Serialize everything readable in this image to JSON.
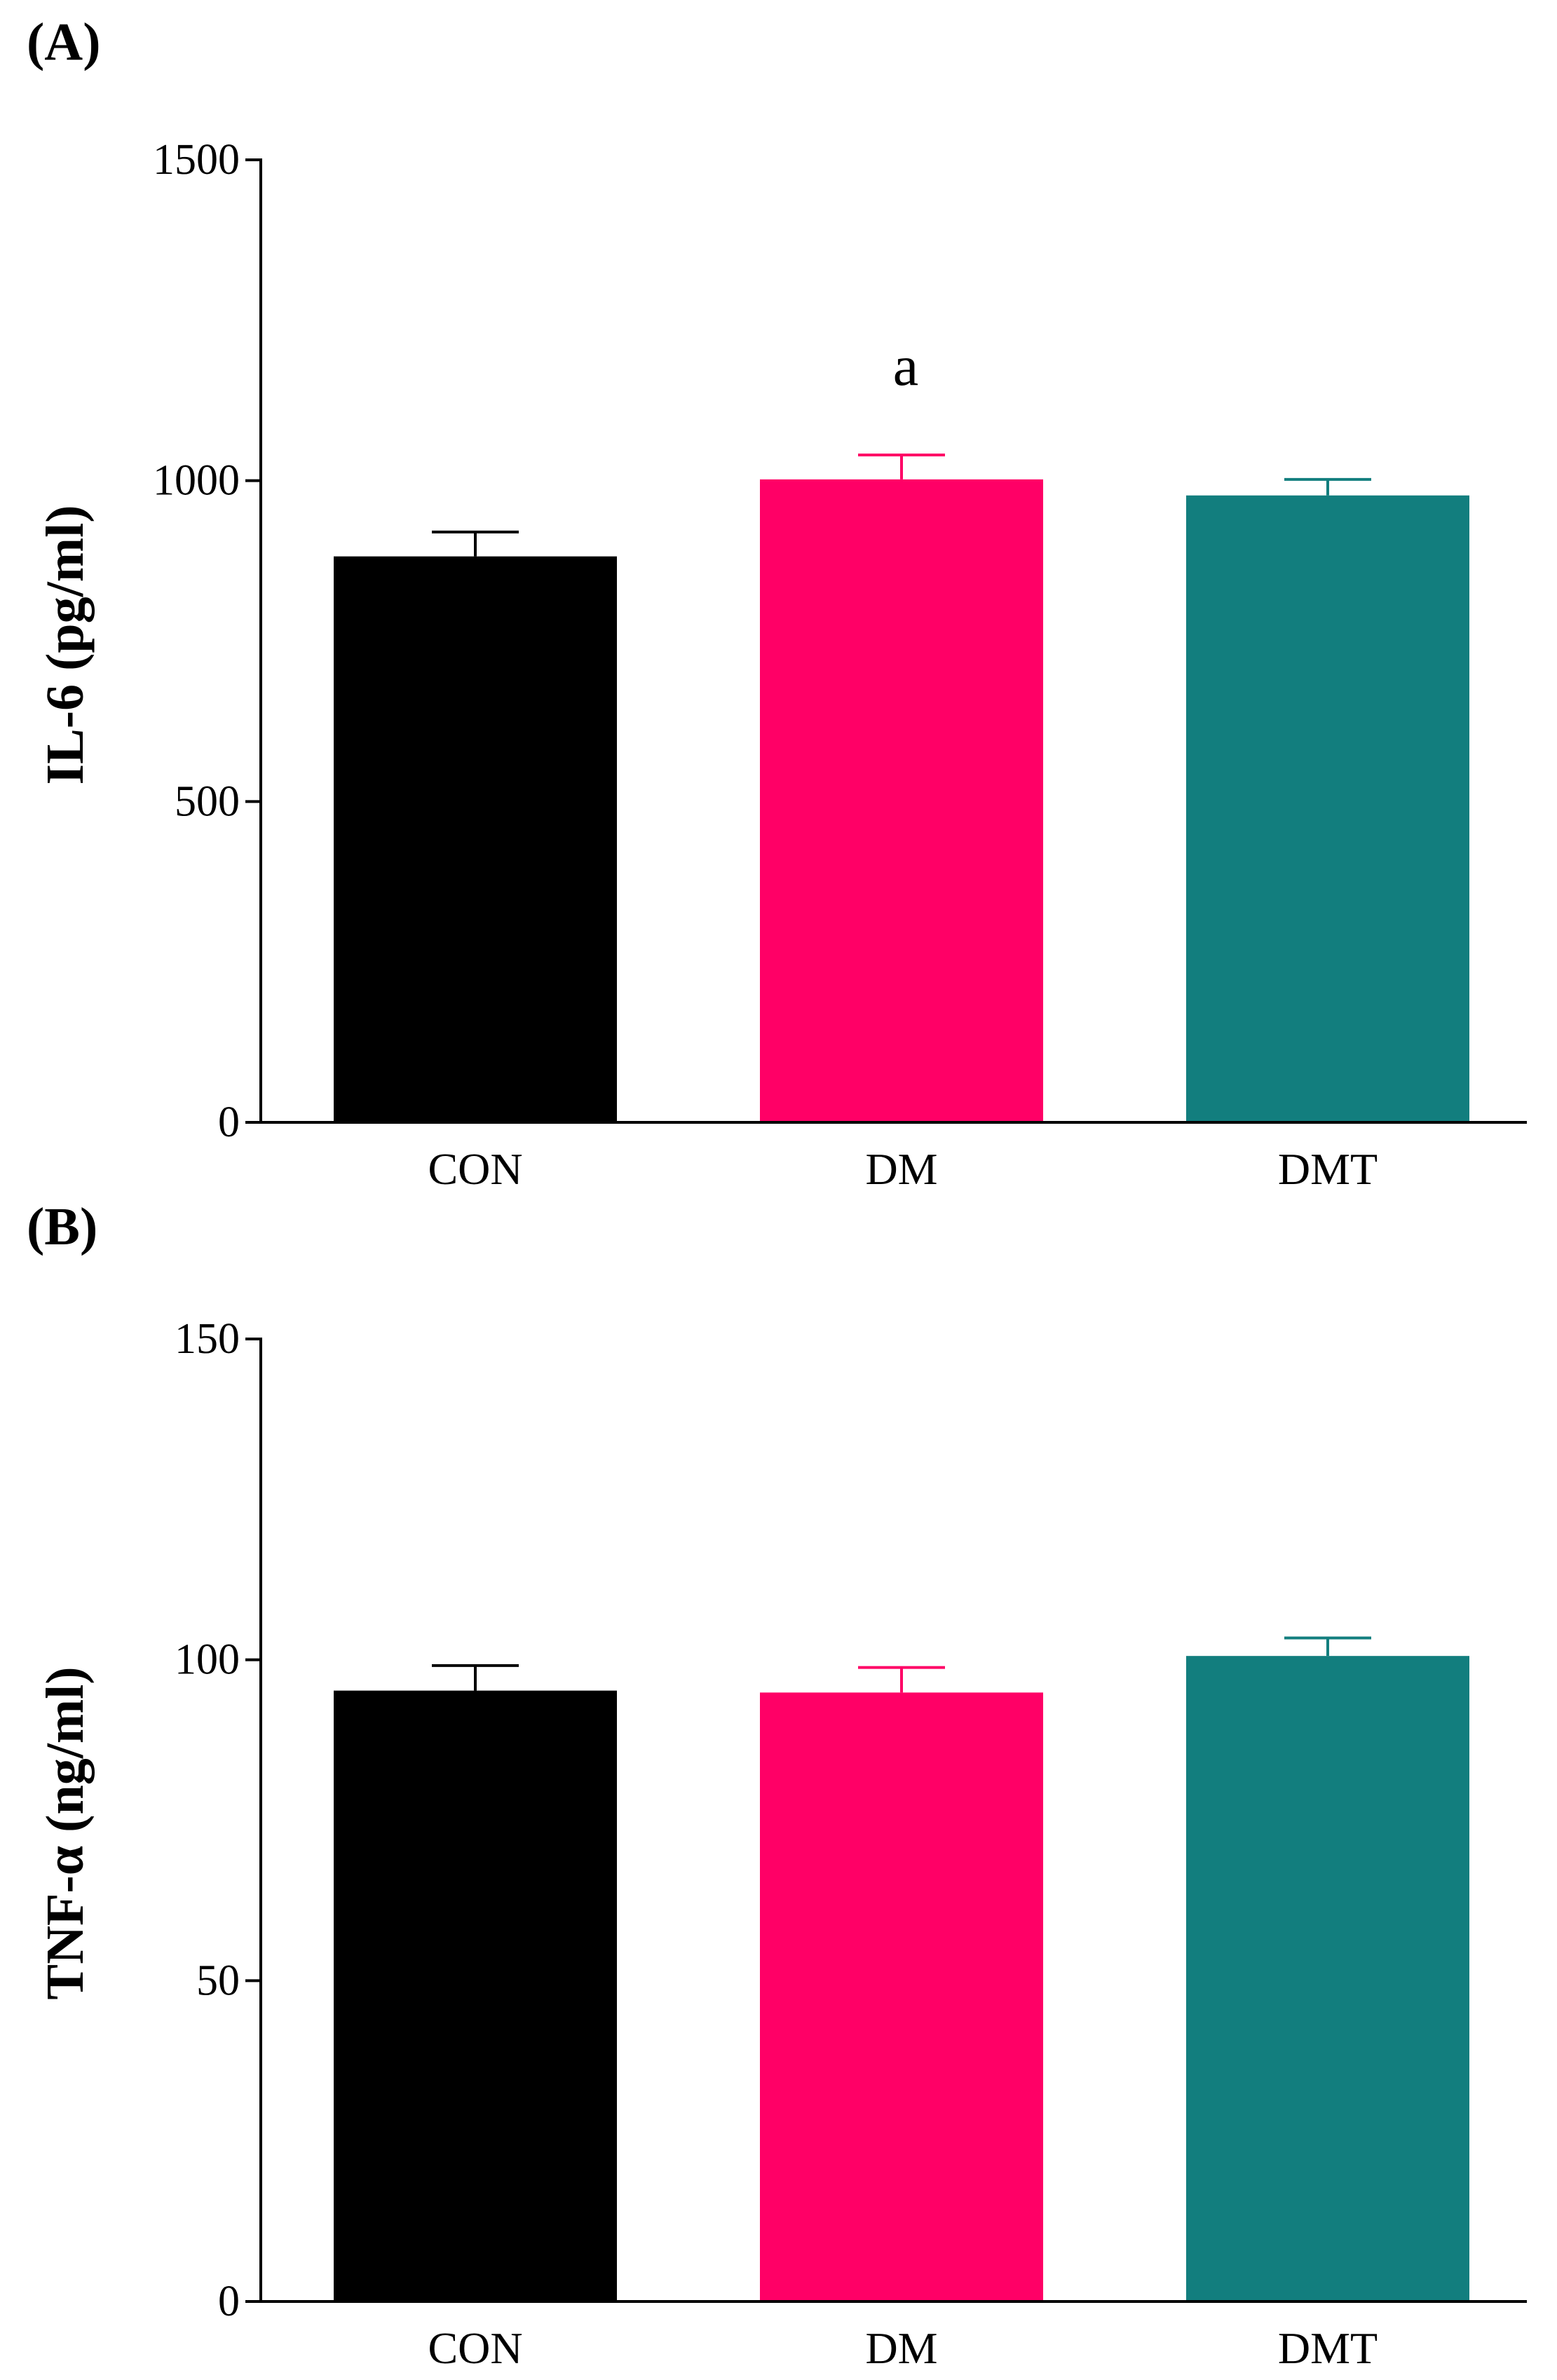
{
  "chart_data": [
    {
      "type": "bar",
      "panel_label": "(A)",
      "title": "",
      "xlabel": "",
      "ylabel": "IL-6 (pg/ml)",
      "categories": [
        "CON",
        "DM",
        "DMT"
      ],
      "values": [
        882,
        1002,
        977
      ],
      "errors": [
        38,
        38,
        25
      ],
      "colors": [
        "#000000",
        "#ff0066",
        "#127e7e"
      ],
      "ylim": [
        0,
        1500
      ],
      "yticks": [
        0,
        500,
        1000,
        1500
      ],
      "ytick_labels": [
        "0",
        "500",
        "1000",
        "1500"
      ],
      "annotations": [
        {
          "category": "DM",
          "text": "a"
        }
      ],
      "grid": false,
      "legend": "none"
    },
    {
      "type": "bar",
      "panel_label": "(B)",
      "title": "",
      "xlabel": "",
      "ylabel": "TNF-α (ng/ml)",
      "categories": [
        "CON",
        "DM",
        "DMT"
      ],
      "values": [
        95.2,
        94.9,
        100.6
      ],
      "errors": [
        3.9,
        3.9,
        2.8
      ],
      "colors": [
        "#000000",
        "#ff0066",
        "#127e7e"
      ],
      "ylim": [
        0,
        150
      ],
      "yticks": [
        0,
        50,
        100,
        150
      ],
      "ytick_labels": [
        "0",
        "50",
        "100",
        "150"
      ],
      "annotations": [],
      "grid": false,
      "legend": "none"
    }
  ]
}
